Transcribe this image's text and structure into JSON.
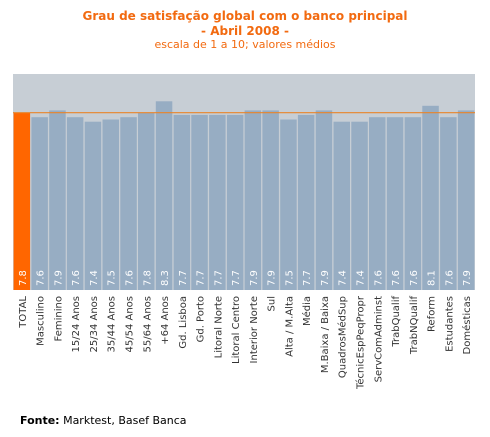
{
  "chart_data": {
    "type": "bar",
    "title": "Grau de satisfação global com o banco principal",
    "title_line2": "- Abril 2008 -",
    "subtitle": "escala de 1 a 10; valores médios",
    "categories": [
      "TOTAL",
      "Masculino",
      "Feminino",
      "15/24 Anos",
      "25/34 Anos",
      "35/44 Anos",
      "45/54 Anos",
      "55/64 Anos",
      "+64 Anos",
      "Gd. Lisboa",
      "Gd. Porto",
      "Litoral Norte",
      "Litoral Centro",
      "Interior Norte",
      "Sul",
      "Alta / M.Alta",
      "Média",
      "M.Baixa / Baixa",
      "QuadrosMédSup",
      "TécnicEspPeqPropr",
      "ServComAdminst",
      "TrabQualif",
      "TrabNQualif",
      "Reform",
      "Estudantes",
      "Domésticas"
    ],
    "values": [
      7.8,
      7.6,
      7.9,
      7.6,
      7.4,
      7.5,
      7.6,
      7.8,
      8.3,
      7.7,
      7.7,
      7.7,
      7.7,
      7.9,
      7.9,
      7.5,
      7.7,
      7.9,
      7.4,
      7.4,
      7.6,
      7.6,
      7.6,
      8.1,
      7.6,
      7.9
    ],
    "value_labels": [
      "7.8",
      "7.6",
      "7.9",
      "7.6",
      "7.4",
      "7.5",
      "7.6",
      "7.8",
      "8.3",
      "7.7",
      "7.7",
      "7.7",
      "7.7",
      "7.9",
      "7.9",
      "7.5",
      "7.7",
      "7.9",
      "7.4",
      "7.4",
      "7.6",
      "7.6",
      "7.6",
      "8.1",
      "7.6",
      "7.9"
    ],
    "reference_value": 7.8,
    "ylim": [
      0,
      9.5
    ],
    "highlight_index": 0,
    "colors": {
      "highlight": "#ff6600",
      "bar": "#97adc3",
      "plot_bg": "#c7ced5",
      "reference_line": "#e8842a",
      "title": "#f26a10",
      "value_text": "#ffffff"
    }
  },
  "footer": {
    "source_label": "Fonte:",
    "source_text": " Marktest, Basef Banca"
  }
}
